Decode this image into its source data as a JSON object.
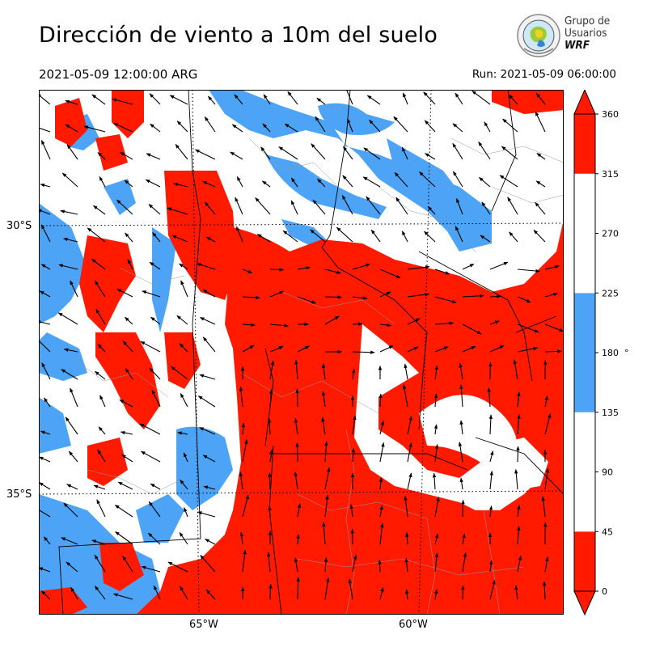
{
  "header": {
    "title": "Dirección de viento a 10m del suelo",
    "valid_time": "2021-05-09 12:00:00 ARG",
    "run_time": "Run: 2021-05-09 06:00:00"
  },
  "logo": {
    "line1": "Grupo de",
    "line2": "Usuarios",
    "line3": "WRF"
  },
  "map": {
    "lat_labels": [
      "30°S",
      "35°S"
    ],
    "lon_labels": [
      "65°W",
      "60°W"
    ],
    "colors": {
      "red": "#ff1a00",
      "blue": "#4da3f5",
      "white": "#ffffff"
    }
  },
  "colorbar": {
    "ticks": [
      "0",
      "45",
      "90",
      "135",
      "180",
      "225",
      "270",
      "315",
      "360"
    ],
    "unit": "°",
    "segments": [
      {
        "from": 0,
        "to": 45,
        "color": "#ff1a00"
      },
      {
        "from": 45,
        "to": 135,
        "color": "#ffffff"
      },
      {
        "from": 135,
        "to": 225,
        "color": "#4da3f5"
      },
      {
        "from": 225,
        "to": 315,
        "color": "#ffffff"
      },
      {
        "from": 315,
        "to": 360,
        "color": "#ff1a00"
      }
    ]
  }
}
